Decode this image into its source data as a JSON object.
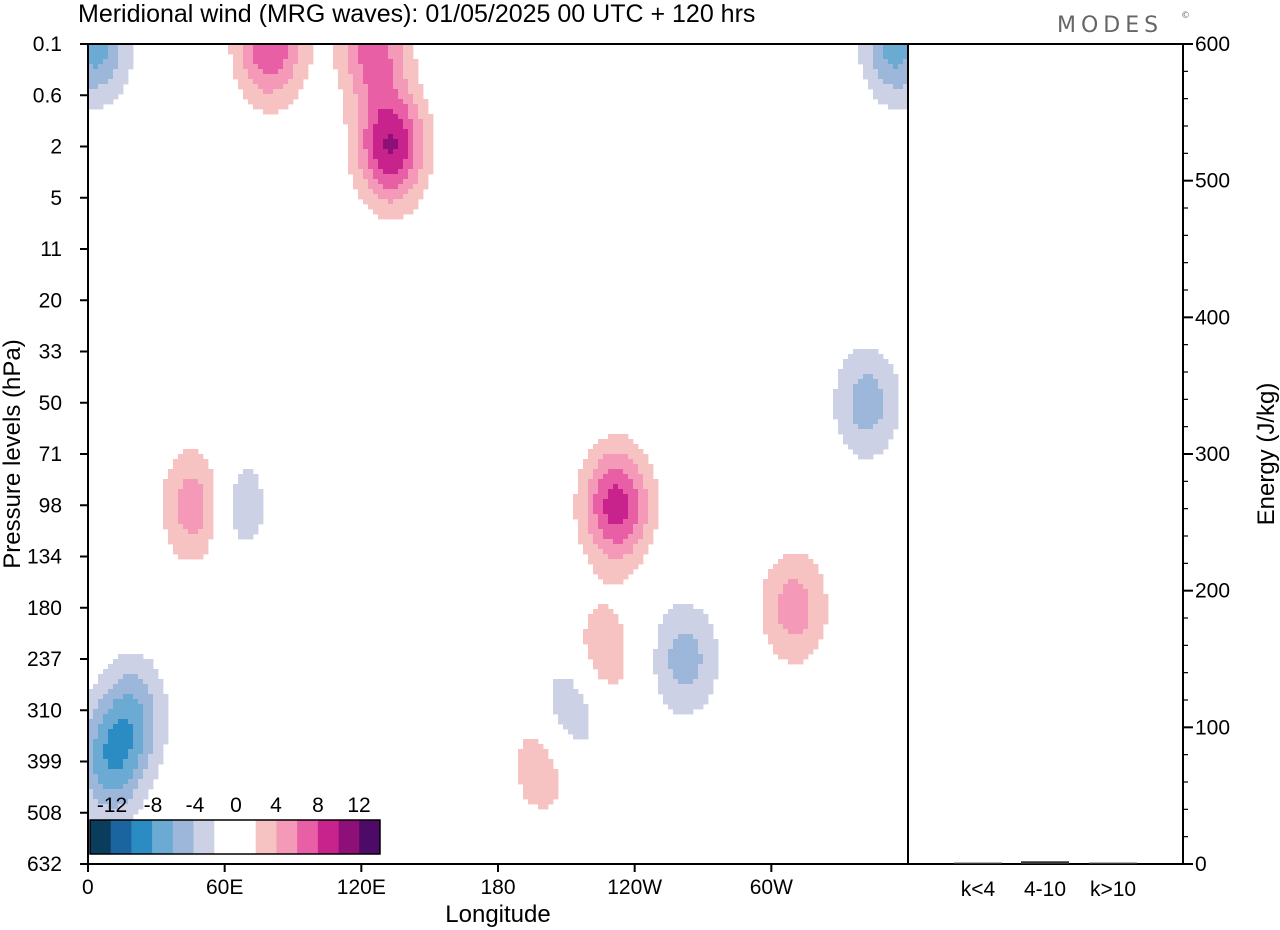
{
  "title": "Meridional wind (MRG waves):  01/05/2025  00 UTC  + 120 hrs",
  "brand": "MODES",
  "brand_mark": "©",
  "colors": {
    "neg": [
      "#0a3d5c",
      "#1a64a0",
      "#2b8cc4",
      "#6aaad3",
      "#9db7da",
      "#cdd1e6"
    ],
    "pos": [
      "#f7c2c2",
      "#f499b8",
      "#e85fa6",
      "#c8238c",
      "#8e0f78",
      "#4d0a66"
    ]
  },
  "chart_data": [
    {
      "type": "heatmap",
      "title": "Meridional wind (MRG waves):  01/05/2025  00 UTC  + 120 hrs",
      "xlabel": "Longitude",
      "ylabel": "Pressure levels (hPa)",
      "x_ticks": [
        "0",
        "60E",
        "120E",
        "180",
        "120W",
        "60W"
      ],
      "y_ticks": [
        "0.1",
        "0.6",
        "2",
        "5",
        "11",
        "20",
        "33",
        "50",
        "71",
        "98",
        "134",
        "180",
        "237",
        "310",
        "399",
        "508",
        "632"
      ],
      "colorbar": {
        "labels": [
          "-12",
          "-8",
          "-4",
          "0",
          "4",
          "8",
          "12"
        ],
        "levels": [
          -14,
          -12,
          -10,
          -8,
          -6,
          -4,
          -2,
          2,
          4,
          6,
          8,
          10,
          12
        ]
      },
      "features": [
        {
          "lon": 48,
          "level": "98",
          "sign": 1,
          "amp": 6
        },
        {
          "lon": 65,
          "level": "98",
          "sign": -1,
          "amp": 4
        },
        {
          "lon": 80,
          "level": "0.1",
          "sign": 1,
          "amp": 8
        },
        {
          "lon": 125,
          "level": "0.1",
          "sign": 1,
          "amp": 7
        },
        {
          "lon": 133,
          "level": "2",
          "sign": 1,
          "amp": 10
        },
        {
          "lon": 20,
          "level": "310",
          "sign": -1,
          "amp": 5
        },
        {
          "lon": 10,
          "level": "399",
          "sign": -1,
          "amp": 7
        },
        {
          "lon": 200,
          "level": "399",
          "sign": 1,
          "amp": 4
        },
        {
          "lon": 212,
          "level": "310",
          "sign": -1,
          "amp": 5
        },
        {
          "lon": 225,
          "level": "237",
          "sign": 1,
          "amp": 4
        },
        {
          "lon": 232,
          "level": "98",
          "sign": 1,
          "amp": 9
        },
        {
          "lon": 262,
          "level": "237",
          "sign": -1,
          "amp": 5
        },
        {
          "lon": 310,
          "level": "180",
          "sign": 1,
          "amp": 5
        },
        {
          "lon": 3,
          "level": "0.1",
          "sign": -1,
          "amp": 7
        },
        {
          "lon": 355,
          "level": "0.1",
          "sign": -1,
          "amp": 7
        },
        {
          "lon": 342,
          "level": "50",
          "sign": -1,
          "amp": 5
        }
      ]
    },
    {
      "type": "bar",
      "categories": [
        "k<4",
        "4-10",
        "k>10"
      ],
      "values": [
        1,
        2,
        1
      ],
      "ylabel": "Energy (J/kg)",
      "ylim": [
        0,
        600
      ],
      "y_ticks": [
        "0",
        "100",
        "200",
        "300",
        "400",
        "500",
        "600"
      ]
    }
  ]
}
